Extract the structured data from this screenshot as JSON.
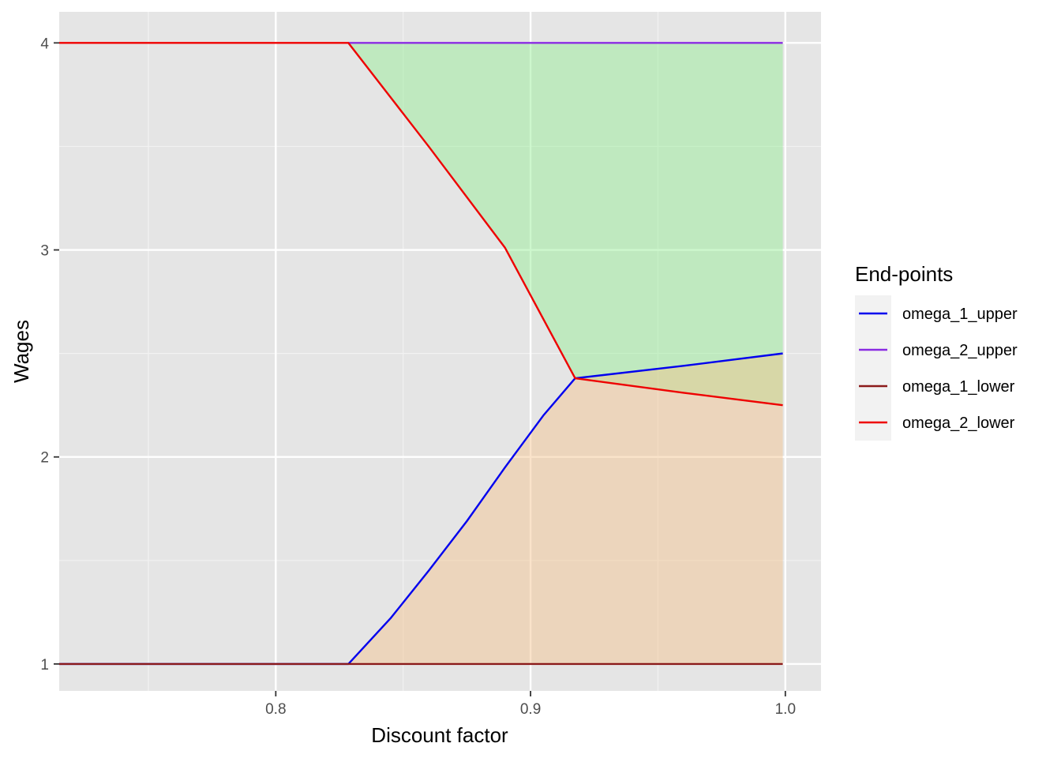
{
  "chart_data": {
    "type": "line",
    "title": "",
    "xlabel": "Discount factor",
    "ylabel": "Wages",
    "xlim": [
      0.715,
      1.014
    ],
    "ylim": [
      0.87,
      4.15
    ],
    "x_ticks": [
      0.8,
      0.9,
      1.0
    ],
    "x_tick_labels": [
      "0.8",
      "0.9",
      "1.0"
    ],
    "x_minor_ticks": [
      0.75,
      0.85,
      0.95
    ],
    "y_ticks": [
      1,
      2,
      3,
      4
    ],
    "y_tick_labels": [
      "1",
      "2",
      "3",
      "4"
    ],
    "y_minor_ticks": [
      1.5,
      2.5,
      3.5
    ],
    "grid": true,
    "panel_background": "#e5e5e5",
    "legend": {
      "title": "End-points",
      "position": "right",
      "entries": [
        {
          "label": "omega_1_upper",
          "color": "#0000ee"
        },
        {
          "label": "omega_2_upper",
          "color": "#8a2be2"
        },
        {
          "label": "omega_1_lower",
          "color": "#8b1a1a"
        },
        {
          "label": "omega_2_lower",
          "color": "#ee0000"
        }
      ]
    },
    "series": [
      {
        "name": "omega_1_upper",
        "color": "#0000ee",
        "points": [
          [
            0.715,
            1
          ],
          [
            0.8285,
            1
          ],
          [
            0.845,
            1.22
          ],
          [
            0.86,
            1.45
          ],
          [
            0.875,
            1.69
          ],
          [
            0.89,
            1.95
          ],
          [
            0.905,
            2.2
          ],
          [
            0.9175,
            2.38
          ],
          [
            0.96,
            2.44
          ],
          [
            0.999,
            2.5
          ]
        ]
      },
      {
        "name": "omega_2_upper",
        "color": "#8a2be2",
        "points": [
          [
            0.8285,
            4
          ],
          [
            0.999,
            4
          ]
        ]
      },
      {
        "name": "omega_1_lower",
        "color": "#8b1a1a",
        "points": [
          [
            0.715,
            1
          ],
          [
            0.999,
            1
          ]
        ]
      },
      {
        "name": "omega_2_lower",
        "color": "#ee0000",
        "points": [
          [
            0.715,
            4
          ],
          [
            0.8285,
            4
          ],
          [
            0.86,
            3.5
          ],
          [
            0.89,
            3.01
          ],
          [
            0.9175,
            2.38
          ],
          [
            0.96,
            2.31
          ],
          [
            0.999,
            2.25
          ]
        ]
      }
    ],
    "areas": [
      {
        "color": "#90ee90",
        "opacity": 0.45,
        "points": [
          [
            0.8285,
            4
          ],
          [
            0.999,
            4
          ],
          [
            0.999,
            2.25
          ],
          [
            0.96,
            2.31
          ],
          [
            0.9175,
            2.38
          ],
          [
            0.89,
            3.01
          ],
          [
            0.86,
            3.5
          ]
        ]
      },
      {
        "color": "#f4c28a",
        "opacity": 0.45,
        "points": [
          [
            0.8285,
            1
          ],
          [
            0.999,
            1
          ],
          [
            0.999,
            2.5
          ],
          [
            0.96,
            2.44
          ],
          [
            0.9175,
            2.38
          ],
          [
            0.905,
            2.2
          ],
          [
            0.89,
            1.95
          ],
          [
            0.875,
            1.69
          ],
          [
            0.86,
            1.45
          ],
          [
            0.845,
            1.22
          ]
        ]
      }
    ]
  }
}
